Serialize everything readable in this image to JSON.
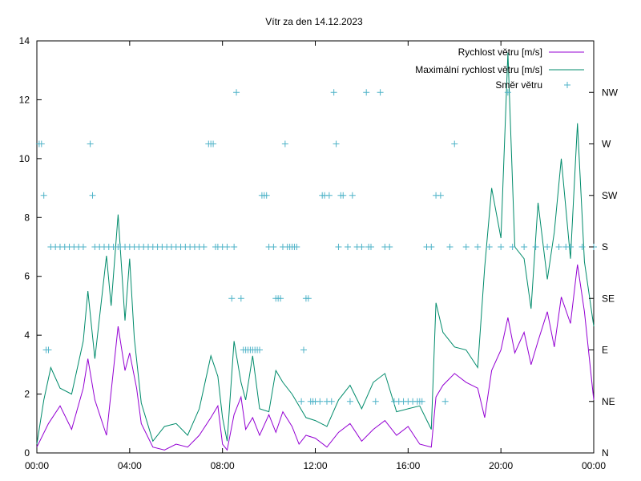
{
  "chart_data": {
    "type": "line",
    "title": "Vítr za den 14.12.2023",
    "xlabel": "",
    "ylabel": "",
    "x_unit": "hours since 00:00",
    "xlim": [
      0,
      24
    ],
    "ylim": [
      0,
      14
    ],
    "x_ticks": [
      {
        "value": 0,
        "label": "00:00"
      },
      {
        "value": 4,
        "label": "04:00"
      },
      {
        "value": 8,
        "label": "08:00"
      },
      {
        "value": 12,
        "label": "12:00"
      },
      {
        "value": 16,
        "label": "16:00"
      },
      {
        "value": 20,
        "label": "20:00"
      },
      {
        "value": 24,
        "label": "00:00"
      }
    ],
    "y_ticks": [
      0,
      2,
      4,
      6,
      8,
      10,
      12,
      14
    ],
    "y2_range": [
      0,
      8
    ],
    "y2_ticks": [
      {
        "value": 0,
        "label": "N"
      },
      {
        "value": 1,
        "label": "NE"
      },
      {
        "value": 2,
        "label": "E"
      },
      {
        "value": 3,
        "label": "SE"
      },
      {
        "value": 4,
        "label": "S"
      },
      {
        "value": 5,
        "label": "SW"
      },
      {
        "value": 6,
        "label": "W"
      },
      {
        "value": 7,
        "label": "NW"
      }
    ],
    "grid": false,
    "legend_position": "top-right",
    "series": [
      {
        "name": "Rychlost větru [m/s]",
        "color": "#9400d3",
        "axis": "y1",
        "x": [
          0,
          0.5,
          1,
          1.5,
          2,
          2.2,
          2.5,
          3,
          3.5,
          3.8,
          4,
          4.3,
          4.5,
          5,
          5.5,
          6,
          6.5,
          7,
          7.5,
          7.8,
          8,
          8.2,
          8.5,
          8.8,
          9,
          9.3,
          9.6,
          10,
          10.3,
          10.6,
          11,
          11.3,
          11.6,
          12,
          12.5,
          13,
          13.5,
          14,
          14.5,
          15,
          15.5,
          16,
          16.5,
          17,
          17.2,
          17.5,
          18,
          18.5,
          19,
          19.3,
          19.6,
          20,
          20.3,
          20.6,
          21,
          21.3,
          21.6,
          22,
          22.3,
          22.6,
          23,
          23.3,
          23.6,
          24
        ],
        "y": [
          0.2,
          1.0,
          1.6,
          0.8,
          2.2,
          3.2,
          1.8,
          0.6,
          4.3,
          2.8,
          3.4,
          2.2,
          1.0,
          0.2,
          0.1,
          0.3,
          0.2,
          0.6,
          1.2,
          1.6,
          0.3,
          0.1,
          1.3,
          1.9,
          0.8,
          1.2,
          0.6,
          1.3,
          0.7,
          1.4,
          0.9,
          0.3,
          0.6,
          0.5,
          0.2,
          0.7,
          1.0,
          0.4,
          0.8,
          1.1,
          0.6,
          0.9,
          0.3,
          0.2,
          1.9,
          2.3,
          2.7,
          2.4,
          2.2,
          1.2,
          2.8,
          3.5,
          4.6,
          3.4,
          4.1,
          3.0,
          3.8,
          4.8,
          3.6,
          5.3,
          4.4,
          6.4,
          4.8,
          1.8
        ]
      },
      {
        "name": "Maximální rychlost větru [m/s]",
        "color": "#008b6b",
        "axis": "y1",
        "x": [
          0,
          0.3,
          0.6,
          1,
          1.5,
          2,
          2.2,
          2.5,
          3,
          3.2,
          3.5,
          3.8,
          4,
          4.2,
          4.5,
          5,
          5.5,
          6,
          6.5,
          7,
          7.5,
          7.8,
          8,
          8.2,
          8.5,
          8.8,
          9,
          9.3,
          9.6,
          10,
          10.3,
          10.6,
          11,
          11.3,
          11.6,
          12,
          12.5,
          13,
          13.5,
          14,
          14.5,
          15,
          15.5,
          16,
          16.5,
          17,
          17.2,
          17.5,
          18,
          18.5,
          19,
          19.3,
          19.6,
          20,
          20.3,
          20.6,
          21,
          21.3,
          21.6,
          22,
          22.3,
          22.6,
          23,
          23.3,
          23.6,
          24
        ],
        "y": [
          0.3,
          1.8,
          2.9,
          2.2,
          2.0,
          3.8,
          5.5,
          3.2,
          6.7,
          5.0,
          8.1,
          4.5,
          6.6,
          3.9,
          1.7,
          0.4,
          0.9,
          1.0,
          0.6,
          1.5,
          3.3,
          2.6,
          1.2,
          0.4,
          3.8,
          2.4,
          1.8,
          3.3,
          1.5,
          1.4,
          2.8,
          2.4,
          2.0,
          1.6,
          1.2,
          1.1,
          0.9,
          1.8,
          2.3,
          1.5,
          2.4,
          2.7,
          1.4,
          1.5,
          1.6,
          0.8,
          5.1,
          4.1,
          3.6,
          3.5,
          2.9,
          6.3,
          9.0,
          7.3,
          13.6,
          7.0,
          6.6,
          4.9,
          8.5,
          5.9,
          7.5,
          10.0,
          6.6,
          11.2,
          6.5,
          4.3
        ]
      },
      {
        "name": "Směr větru",
        "color": "#4fb3c8",
        "axis": "y2",
        "marker": "+",
        "x": [
          0.1,
          0.2,
          0.3,
          0.4,
          0.5,
          0.6,
          0.8,
          1.0,
          1.2,
          1.4,
          1.6,
          1.8,
          2.0,
          2.3,
          2.4,
          2.5,
          2.7,
          2.9,
          3.1,
          3.3,
          3.5,
          3.6,
          3.8,
          4.0,
          4.2,
          4.4,
          4.6,
          4.8,
          5.0,
          5.2,
          5.4,
          5.6,
          5.8,
          6.0,
          6.2,
          6.4,
          6.6,
          6.8,
          7.0,
          7.2,
          7.4,
          7.5,
          7.6,
          7.7,
          7.8,
          8.0,
          8.2,
          8.4,
          8.5,
          8.6,
          8.8,
          8.9,
          9.0,
          9.1,
          9.2,
          9.3,
          9.4,
          9.5,
          9.6,
          9.7,
          9.8,
          9.9,
          10.0,
          10.2,
          10.3,
          10.4,
          10.5,
          10.6,
          10.7,
          10.8,
          10.9,
          11.0,
          11.1,
          11.2,
          11.4,
          11.5,
          11.6,
          11.7,
          11.8,
          11.9,
          12.0,
          12.2,
          12.3,
          12.4,
          12.5,
          12.6,
          12.7,
          12.8,
          12.9,
          13.0,
          13.1,
          13.2,
          13.4,
          13.5,
          13.6,
          13.8,
          14.0,
          14.2,
          14.3,
          14.4,
          14.6,
          14.8,
          15.0,
          15.2,
          15.4,
          15.6,
          15.8,
          16.0,
          16.2,
          16.4,
          16.5,
          16.6,
          16.8,
          17.0,
          17.2,
          17.4,
          17.6,
          17.8,
          18.0,
          18.5,
          19.0,
          19.5,
          20.0,
          20.3,
          20.5,
          21.0,
          21.5,
          22.0,
          22.5,
          22.8,
          23.0,
          23.5,
          24.0
        ],
        "y": [
          6,
          6,
          5,
          2,
          2,
          4,
          4,
          4,
          4,
          4,
          4,
          4,
          4,
          6,
          5,
          4,
          4,
          4,
          4,
          4,
          4,
          4,
          4,
          4,
          4,
          4,
          4,
          4,
          4,
          4,
          4,
          4,
          4,
          4,
          4,
          4,
          4,
          4,
          4,
          4,
          6,
          6,
          6,
          4,
          4,
          4,
          4,
          3,
          4,
          7,
          3,
          2,
          2,
          2,
          2,
          2,
          2,
          2,
          2,
          5,
          5,
          5,
          4,
          4,
          3,
          3,
          3,
          4,
          6,
          4,
          4,
          4,
          4,
          4,
          1,
          2,
          3,
          3,
          1,
          1,
          1,
          1,
          5,
          5,
          1,
          5,
          1,
          7,
          6,
          4,
          5,
          5,
          4,
          1,
          5,
          4,
          4,
          7,
          4,
          4,
          1,
          7,
          4,
          4,
          1,
          1,
          1,
          1,
          1,
          1,
          1,
          1,
          4,
          4,
          5,
          5,
          1,
          4,
          6,
          4,
          4,
          4,
          4,
          7,
          4,
          4,
          4,
          4,
          4,
          4,
          4,
          4,
          4
        ]
      }
    ]
  }
}
